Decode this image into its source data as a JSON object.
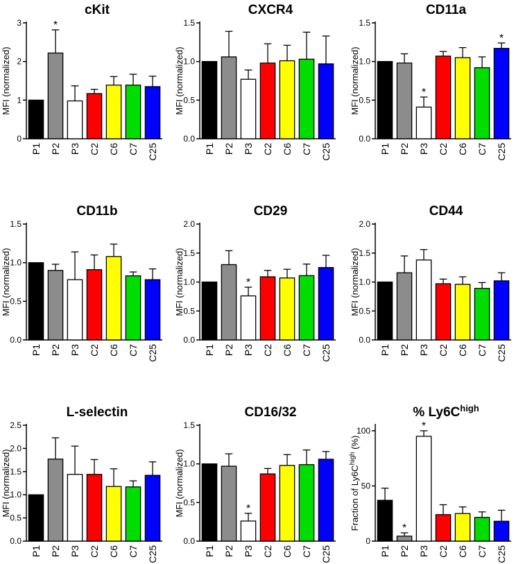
{
  "chart_data": [
    {
      "type": "bar",
      "title": "cKit",
      "ylabel": "MFI (normalized)",
      "ylim": [
        0,
        3
      ],
      "yticks": [
        "0",
        "1",
        "2",
        "3"
      ],
      "categories": [
        "P1",
        "P2",
        "P3",
        "C2",
        "C6",
        "C7",
        "C25"
      ],
      "values": [
        1.0,
        2.22,
        0.98,
        1.17,
        1.39,
        1.39,
        1.35
      ],
      "errors": [
        0,
        0.6,
        0.39,
        0.11,
        0.22,
        0.28,
        0.27
      ],
      "significant": [
        false,
        true,
        false,
        false,
        false,
        false,
        false
      ],
      "star": "*",
      "colors": [
        "#000000",
        "#8c8c8c",
        "#ffffff",
        "#ff0000",
        "#ffff00",
        "#00dd00",
        "#0000ff"
      ]
    },
    {
      "type": "bar",
      "title": "CXCR4",
      "ylabel": "MFI (normalized)",
      "ylim": [
        0,
        1.5
      ],
      "yticks": [
        "0.0",
        "0.5",
        "1.0",
        "1.5"
      ],
      "categories": [
        "P1",
        "P2",
        "P3",
        "C2",
        "C6",
        "C7",
        "C25"
      ],
      "values": [
        1.0,
        1.06,
        0.77,
        0.98,
        1.01,
        1.03,
        0.97
      ],
      "errors": [
        0,
        0.33,
        0.12,
        0.25,
        0.2,
        0.35,
        0.36
      ],
      "significant": [
        false,
        false,
        false,
        false,
        false,
        false,
        false
      ],
      "star": "*",
      "colors": [
        "#000000",
        "#8c8c8c",
        "#ffffff",
        "#ff0000",
        "#ffff00",
        "#00dd00",
        "#0000ff"
      ]
    },
    {
      "type": "bar",
      "title": "CD11a",
      "ylabel": "MFI (normalized)",
      "ylim": [
        0,
        1.5
      ],
      "yticks": [
        "0.0",
        "0.5",
        "1.0",
        "1.5"
      ],
      "categories": [
        "P1",
        "P2",
        "P3",
        "C2",
        "C6",
        "C7",
        "C25"
      ],
      "values": [
        1.0,
        0.98,
        0.41,
        1.07,
        1.05,
        0.92,
        1.17
      ],
      "errors": [
        0,
        0.12,
        0.13,
        0.06,
        0.13,
        0.14,
        0.07
      ],
      "significant": [
        false,
        false,
        true,
        false,
        false,
        false,
        true
      ],
      "star": "*",
      "colors": [
        "#000000",
        "#8c8c8c",
        "#ffffff",
        "#ff0000",
        "#ffff00",
        "#00dd00",
        "#0000ff"
      ]
    },
    {
      "type": "bar",
      "title": "CD11b",
      "ylabel": "MFI (normalized)",
      "ylim": [
        0,
        1.5
      ],
      "yticks": [
        "0.0",
        "0.5",
        "1.0",
        "1.5"
      ],
      "categories": [
        "P1",
        "P2",
        "P3",
        "C2",
        "C6",
        "C7",
        "C25"
      ],
      "values": [
        1.0,
        0.9,
        0.78,
        0.91,
        1.08,
        0.83,
        0.78
      ],
      "errors": [
        0,
        0.08,
        0.36,
        0.19,
        0.16,
        0.05,
        0.14
      ],
      "significant": [
        false,
        false,
        false,
        false,
        false,
        false,
        false
      ],
      "star": "*",
      "colors": [
        "#000000",
        "#8c8c8c",
        "#ffffff",
        "#ff0000",
        "#ffff00",
        "#00dd00",
        "#0000ff"
      ]
    },
    {
      "type": "bar",
      "title": "CD29",
      "ylabel": "MFI (normalized)",
      "ylim": [
        0,
        2.0
      ],
      "yticks": [
        "0.0",
        "0.5",
        "1.0",
        "1.5",
        "2.0"
      ],
      "categories": [
        "P1",
        "P2",
        "P3",
        "C2",
        "C6",
        "C7",
        "C25"
      ],
      "values": [
        1.0,
        1.3,
        0.76,
        1.09,
        1.07,
        1.11,
        1.25
      ],
      "errors": [
        0,
        0.24,
        0.15,
        0.11,
        0.15,
        0.2,
        0.21
      ],
      "significant": [
        false,
        false,
        true,
        false,
        false,
        false,
        false
      ],
      "star": "*",
      "colors": [
        "#000000",
        "#8c8c8c",
        "#ffffff",
        "#ff0000",
        "#ffff00",
        "#00dd00",
        "#0000ff"
      ]
    },
    {
      "type": "bar",
      "title": "CD44",
      "ylabel": "MFI (normalized)",
      "ylim": [
        0,
        2.0
      ],
      "yticks": [
        "0.0",
        "0.5",
        "1.0",
        "1.5",
        "2.0"
      ],
      "categories": [
        "P1",
        "P2",
        "P3",
        "C2",
        "C6",
        "C7",
        "C25"
      ],
      "values": [
        1.0,
        1.16,
        1.38,
        0.97,
        0.96,
        0.89,
        1.02
      ],
      "errors": [
        0,
        0.29,
        0.18,
        0.08,
        0.13,
        0.1,
        0.14
      ],
      "significant": [
        false,
        false,
        false,
        false,
        false,
        false,
        false
      ],
      "star": "*",
      "colors": [
        "#000000",
        "#8c8c8c",
        "#ffffff",
        "#ff0000",
        "#ffff00",
        "#00dd00",
        "#0000ff"
      ]
    },
    {
      "type": "bar",
      "title": "L-selectin",
      "ylabel": "MFI (normalized)",
      "ylim": [
        0,
        2.5
      ],
      "yticks": [
        "0.0",
        "0.5",
        "1.0",
        "1.5",
        "2.0",
        "2.5"
      ],
      "categories": [
        "P1",
        "P2",
        "P3",
        "C2",
        "C6",
        "C7",
        "C25"
      ],
      "values": [
        1.0,
        1.77,
        1.44,
        1.44,
        1.18,
        1.17,
        1.42
      ],
      "errors": [
        0,
        0.46,
        0.61,
        0.32,
        0.38,
        0.13,
        0.29
      ],
      "significant": [
        false,
        false,
        false,
        false,
        false,
        false,
        false
      ],
      "star": "*",
      "colors": [
        "#000000",
        "#8c8c8c",
        "#ffffff",
        "#ff0000",
        "#ffff00",
        "#00dd00",
        "#0000ff"
      ]
    },
    {
      "type": "bar",
      "title": "CD16/32",
      "ylabel": "MFI (normalized)",
      "ylim": [
        0,
        1.5
      ],
      "yticks": [
        "0.0",
        "0.5",
        "1.0",
        "1.5"
      ],
      "categories": [
        "P1",
        "P2",
        "P3",
        "C2",
        "C6",
        "C7",
        "C25"
      ],
      "values": [
        1.0,
        0.97,
        0.26,
        0.87,
        0.98,
        0.99,
        1.06
      ],
      "errors": [
        0,
        0.16,
        0.1,
        0.07,
        0.14,
        0.19,
        0.1
      ],
      "significant": [
        false,
        false,
        true,
        false,
        false,
        false,
        false
      ],
      "star": "*",
      "colors": [
        "#000000",
        "#8c8c8c",
        "#ffffff",
        "#ff0000",
        "#ffff00",
        "#00dd00",
        "#0000ff"
      ]
    },
    {
      "type": "bar",
      "title": "% Ly6C",
      "title_sup": "high",
      "ylabel": "Fraction of Ly6C",
      "ylabel_sup": "high",
      "ylabel_suffix": " (%)",
      "ylim": [
        0,
        105
      ],
      "ytick_values": [
        0,
        50,
        100
      ],
      "yticks": [
        "0",
        "50",
        "100"
      ],
      "categories": [
        "P1",
        "P2",
        "P3",
        "C2",
        "C6",
        "C7",
        "C25"
      ],
      "values": [
        37,
        4.5,
        95,
        24,
        25,
        21.5,
        18
      ],
      "errors": [
        11,
        3,
        5,
        9,
        6,
        5,
        10
      ],
      "significant": [
        false,
        true,
        true,
        false,
        false,
        false,
        false
      ],
      "star": "*",
      "colors": [
        "#000000",
        "#8c8c8c",
        "#ffffff",
        "#ff0000",
        "#ffff00",
        "#00dd00",
        "#0000ff"
      ]
    }
  ]
}
